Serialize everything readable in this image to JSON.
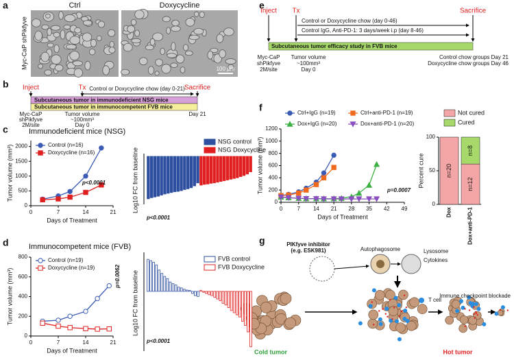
{
  "panel_labels": [
    "a",
    "b",
    "c",
    "d",
    "e",
    "f",
    "g"
  ],
  "panel_a": {
    "ctrl": "Ctrl",
    "dox": "Doxycycline",
    "cells": "Myc-CaP shPikfyve",
    "scale": "100 µm"
  },
  "panel_b": {
    "inject": "Inject",
    "tx": "Tx",
    "sacrifice": "Sacrifice",
    "treatment": "Control or Doxycycline chow (day 0-21)",
    "bar1": "Subcutaneous tumor in immunodeficient NSG mice",
    "bar2": "Subcutaneous tumor in immunocompetent FVB mice",
    "cells": [
      "Myc-CaP",
      "shPikfyve",
      "2M/site"
    ],
    "start": [
      "Tumor volume",
      "~100mm³",
      "Day 0"
    ],
    "end": "Day 21"
  },
  "panel_e": {
    "inject": "Inject",
    "tx": "Tx",
    "sacrifice": "Sacrifice",
    "treatment": [
      "Control or Doxycycline chow (day 0-46)",
      "Control IgG, Anti-PD-1: 3 days/week i.p (day 8-46)"
    ],
    "bar": "Subcutaneous tumor efficacy study in FVB mice",
    "cells": [
      "Myc-CaP",
      "shPikfyve",
      "2M/site"
    ],
    "start": [
      "Tumor volume",
      "~100mm³",
      "Day 0"
    ],
    "end": [
      "Control chow groups Day 21",
      "Doxycycline chow groups Day 46"
    ]
  },
  "panel_g": {
    "inhibitor": [
      "PIKfyve inhibitor",
      "(e.g. ESK981)"
    ],
    "autophagosome": "Autophagosome",
    "lysosome": "Lysosome",
    "cytokines": "Cytokines",
    "t_cell": "T cell",
    "checkpoint": "Immune checkpoint blockade",
    "cold": "Cold tumor",
    "hot": "Hot tumor"
  },
  "chart_data": [
    {
      "type": "line",
      "title": "Immunodeficient mice (NSG)",
      "x_label": "Days of Treatment",
      "y_label": "Tumor volume (mm³)",
      "x": [
        3,
        7,
        10,
        14,
        18
      ],
      "xlim": [
        0,
        21
      ],
      "xticks": [
        0,
        7,
        14,
        21
      ],
      "ylim": [
        0,
        2200
      ],
      "yticks": [
        0,
        500,
        1000,
        1500,
        2000
      ],
      "annotation": "p<0.0001",
      "series": [
        {
          "name": "Control (n=16)",
          "color": "#3b5bb5",
          "marker": "circle",
          "open": false,
          "values": [
            220,
            330,
            480,
            1000,
            1950
          ]
        },
        {
          "name": "Doxycycline (n=16)",
          "color": "#e02020",
          "marker": "square",
          "open": false,
          "values": [
            200,
            230,
            290,
            450,
            700
          ]
        }
      ]
    },
    {
      "type": "bar",
      "y_label": "Log10 FC from baseline",
      "ylim": [
        0,
        1.3
      ],
      "y_inverted": true,
      "annotation": "p<0.0001",
      "series": [
        {
          "name": "NSG control",
          "color": "#2e4fa0",
          "open": false,
          "values": [
            1.15,
            1.12,
            1.1,
            1.08,
            1.05,
            1.02,
            1.0,
            0.98,
            0.96,
            0.95,
            0.93,
            0.9,
            0.88,
            0.85,
            0.8,
            0.72
          ]
        },
        {
          "name": "NSG Doxycycline",
          "color": "#e02020",
          "open": false,
          "values": [
            0.78,
            0.76,
            0.75,
            0.73,
            0.72,
            0.7,
            0.68,
            0.66,
            0.64,
            0.62,
            0.6,
            0.58,
            0.55,
            0.52,
            0.48,
            0.42
          ]
        }
      ]
    },
    {
      "type": "line",
      "title": "Immunocompetent mice (FVB)",
      "x_label": "Days of Treatment",
      "y_label": "Tumor volume (mm³)",
      "x": [
        3,
        7,
        10,
        14,
        17,
        20
      ],
      "xlim": [
        0,
        21
      ],
      "xticks": [
        0,
        7,
        14,
        21
      ],
      "ylim": [
        0,
        800
      ],
      "yticks": [
        0,
        200,
        400,
        600,
        800
      ],
      "annotation": "p=0.0062",
      "series": [
        {
          "name": "Control (n=19)",
          "color": "#3b5bb5",
          "marker": "circle",
          "open": true,
          "values": [
            150,
            160,
            200,
            250,
            380,
            510
          ]
        },
        {
          "name": "Doxycycline (n=19)",
          "color": "#e02020",
          "marker": "square",
          "open": true,
          "values": [
            130,
            100,
            85,
            75,
            70,
            72
          ]
        }
      ]
    },
    {
      "type": "bar",
      "y_label": "Log10 FC from baseline",
      "ylim": [
        -1.4,
        0.85
      ],
      "y_inverted": false,
      "annotation": "p<0.0001",
      "series": [
        {
          "name": "FVB control",
          "color": "#2e4fa0",
          "open": true,
          "values": [
            0.75,
            0.72,
            0.68,
            0.62,
            0.5,
            0.42,
            0.35,
            0.3,
            0.22,
            0.18,
            0.15,
            0.1,
            0.08,
            0.05,
            0.03,
            0.02,
            -0.05,
            -0.1,
            -0.12
          ]
        },
        {
          "name": "FVB Doxycycline",
          "color": "#e02020",
          "open": true,
          "values": [
            0.02,
            -0.02,
            -0.05,
            -0.08,
            -0.1,
            -0.14,
            -0.18,
            -0.22,
            -0.28,
            -0.32,
            -0.38,
            -0.45,
            -0.5,
            -0.55,
            -0.6,
            -0.7,
            -0.8,
            -0.95,
            -1.3
          ]
        }
      ]
    },
    {
      "type": "line",
      "x_label": "Days of Treatment",
      "y_label": "Tumor volume (mm³)",
      "x": [
        0,
        3,
        7,
        10,
        14,
        17,
        21,
        24,
        28,
        31,
        35,
        38
      ],
      "xlim": [
        0,
        49
      ],
      "xticks": [
        0,
        7,
        14,
        21,
        28,
        35,
        42,
        49
      ],
      "ylim": [
        0,
        1200
      ],
      "yticks": [
        0,
        200,
        400,
        600,
        800,
        1000,
        1200
      ],
      "annotation": "p=0.0007",
      "series": [
        {
          "name": "Ctrl+IgG (n=19)",
          "color": "#3b5bb5",
          "marker": "circle",
          "open": false,
          "values": [
            110,
            130,
            170,
            230,
            330,
            480,
            770,
            null,
            null,
            null,
            null,
            null
          ]
        },
        {
          "name": "Ctrl+anti-PD-1 (n=19)",
          "color": "#f06a1e",
          "marker": "square",
          "open": false,
          "values": [
            110,
            120,
            150,
            200,
            290,
            400,
            570,
            null,
            null,
            null,
            null,
            null
          ]
        },
        {
          "name": "Dox+IgG (n=20)",
          "color": "#3cb043",
          "marker": "triangle",
          "open": false,
          "values": [
            85,
            75,
            65,
            60,
            60,
            58,
            60,
            65,
            90,
            150,
            280,
            620
          ]
        },
        {
          "name": "Dox+anti-PD-1 (n=20)",
          "color": "#8a4fc0",
          "marker": "triangle-down",
          "open": false,
          "values": [
            85,
            75,
            65,
            60,
            58,
            55,
            55,
            55,
            55,
            55,
            55,
            55
          ]
        }
      ]
    },
    {
      "type": "stacked_bar",
      "y_label": "Percent cure",
      "categories": [
        "Dox",
        "Dox+anti-PD-1"
      ],
      "ylim": [
        0,
        100
      ],
      "yticks": [
        0,
        50,
        100
      ],
      "series": [
        {
          "name": "Not cured",
          "color": "#f4a6a6",
          "values": [
            100,
            60
          ],
          "count_labels": [
            "n=20",
            "n=12"
          ]
        },
        {
          "name": "Cured",
          "color": "#a6d96a",
          "values": [
            0,
            40
          ],
          "count_labels": [
            null,
            "n=8"
          ]
        }
      ]
    }
  ]
}
